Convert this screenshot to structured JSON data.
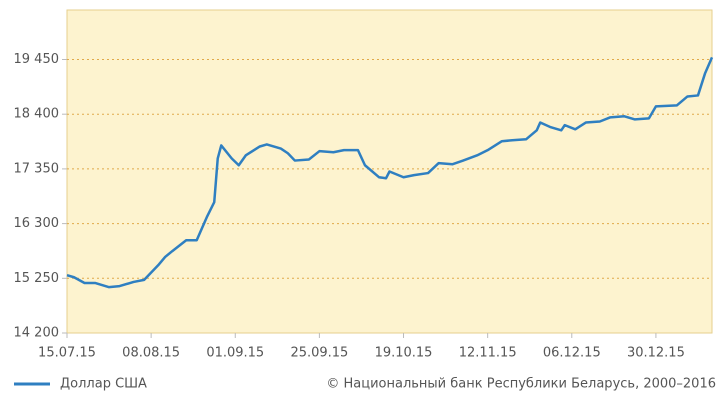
{
  "chart_data": {
    "type": "line",
    "x": [
      "2015-07-15",
      "2015-07-17",
      "2015-07-20",
      "2015-07-23",
      "2015-07-27",
      "2015-07-30",
      "2015-08-03",
      "2015-08-06",
      "2015-08-10",
      "2015-08-12",
      "2015-08-14",
      "2015-08-18",
      "2015-08-21",
      "2015-08-24",
      "2015-08-26",
      "2015-08-27",
      "2015-08-28",
      "2015-08-31",
      "2015-09-02",
      "2015-09-04",
      "2015-09-08",
      "2015-09-10",
      "2015-09-14",
      "2015-09-16",
      "2015-09-18",
      "2015-09-22",
      "2015-09-25",
      "2015-09-29",
      "2015-10-02",
      "2015-10-06",
      "2015-10-08",
      "2015-10-12",
      "2015-10-14",
      "2015-10-15",
      "2015-10-19",
      "2015-10-22",
      "2015-10-26",
      "2015-10-29",
      "2015-11-02",
      "2015-11-05",
      "2015-11-09",
      "2015-11-12",
      "2015-11-16",
      "2015-11-19",
      "2015-11-23",
      "2015-11-26",
      "2015-11-27",
      "2015-11-30",
      "2015-12-03",
      "2015-12-04",
      "2015-12-07",
      "2015-12-10",
      "2015-12-14",
      "2015-12-17",
      "2015-12-21",
      "2015-12-24",
      "2015-12-28",
      "2015-12-30",
      "2016-01-05",
      "2016-01-08",
      "2016-01-11",
      "2016-01-13",
      "2016-01-15"
    ],
    "series": [
      {
        "name": "Доллар США",
        "color": "#2f7fc1",
        "values": [
          15310,
          15270,
          15160,
          15160,
          15080,
          15100,
          15180,
          15220,
          15500,
          15660,
          15770,
          15980,
          15980,
          16440,
          16710,
          17550,
          17800,
          17550,
          17420,
          17610,
          17780,
          17820,
          17740,
          17650,
          17510,
          17530,
          17690,
          17670,
          17710,
          17710,
          17420,
          17190,
          17170,
          17300,
          17190,
          17230,
          17270,
          17460,
          17440,
          17510,
          17610,
          17710,
          17880,
          17900,
          17920,
          18090,
          18240,
          18150,
          18090,
          18190,
          18110,
          18240,
          18260,
          18340,
          18360,
          18300,
          18320,
          18550,
          18570,
          18740,
          18760,
          19180,
          19490
        ]
      }
    ],
    "xlim": [
      "2015-07-15",
      "2016-01-15"
    ],
    "xticks": [
      {
        "value": "2015-07-15",
        "label": "15.07.15"
      },
      {
        "value": "2015-08-08",
        "label": "08.08.15"
      },
      {
        "value": "2015-09-01",
        "label": "01.09.15"
      },
      {
        "value": "2015-09-25",
        "label": "25.09.15"
      },
      {
        "value": "2015-10-19",
        "label": "19.10.15"
      },
      {
        "value": "2015-11-12",
        "label": "12.11.15"
      },
      {
        "value": "2015-12-06",
        "label": "06.12.15"
      },
      {
        "value": "2015-12-30",
        "label": "30.12.15"
      }
    ],
    "ylim": [
      14200,
      20400
    ],
    "yticks": [
      {
        "value": 14200,
        "label": "14 200"
      },
      {
        "value": 15250,
        "label": "15 250"
      },
      {
        "value": 16300,
        "label": "16 300"
      },
      {
        "value": 17350,
        "label": "17 350"
      },
      {
        "value": 18400,
        "label": "18 400"
      },
      {
        "value": 19450,
        "label": "19 450"
      }
    ],
    "grid": true,
    "source": "© Национальный банк Республики Беларусь, 2000–2016"
  }
}
